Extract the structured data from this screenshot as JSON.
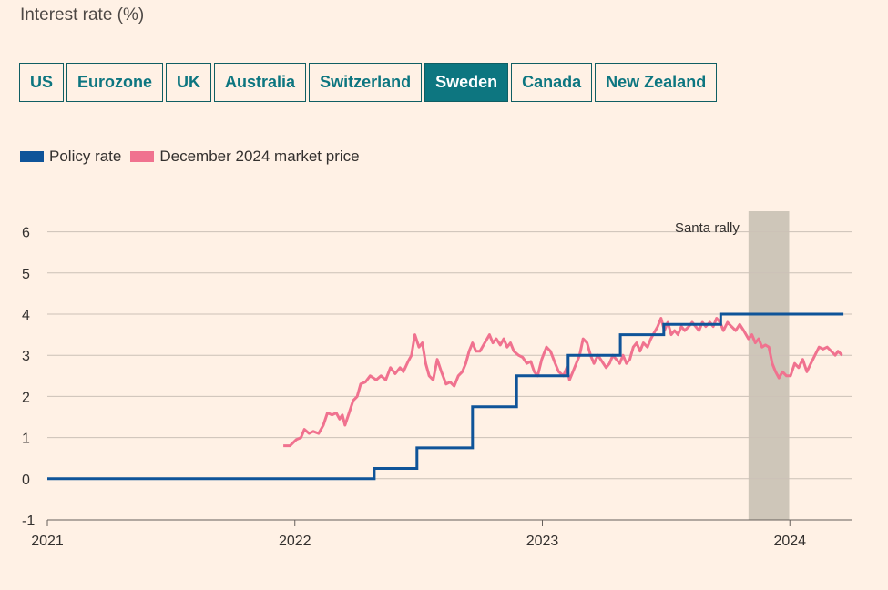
{
  "title": "Interest rate (%)",
  "tabs": [
    {
      "label": "US",
      "active": false
    },
    {
      "label": "Eurozone",
      "active": false
    },
    {
      "label": "UK",
      "active": false
    },
    {
      "label": "Australia",
      "active": false
    },
    {
      "label": "Switzerland",
      "active": false
    },
    {
      "label": "Sweden",
      "active": true
    },
    {
      "label": "Canada",
      "active": false
    },
    {
      "label": "New Zealand",
      "active": false
    }
  ],
  "colors": {
    "background": "#FFF1E5",
    "policy_rate": "#0F5499",
    "market_price": "#F0728F",
    "tab_accent": "#0D7680",
    "shade": "#CEC6B9",
    "grid": "#CCC1B7"
  },
  "chart_data": {
    "type": "line",
    "x_axis": {
      "type": "date",
      "range": [
        "2021-01-01",
        "2024-04-01"
      ],
      "ticks": [
        "2021",
        "2022",
        "2023",
        "2024"
      ]
    },
    "y_axis": {
      "range": [
        -1,
        6.5
      ],
      "ticks": [
        "-1",
        "0",
        "1",
        "2",
        "3",
        "4",
        "5",
        "6"
      ]
    },
    "grid": true,
    "legend_position": "top-left",
    "shaded_region": {
      "label": "Santa rally",
      "start": "2023-11-01",
      "end": "2023-12-31"
    },
    "series": [
      {
        "name": "Policy rate",
        "step": true,
        "points": [
          [
            "2021-01-01",
            0
          ],
          [
            "2022-04-28",
            0
          ],
          [
            "2022-04-28",
            0.25
          ],
          [
            "2022-06-30",
            0.25
          ],
          [
            "2022-06-30",
            0.75
          ],
          [
            "2022-09-20",
            0.75
          ],
          [
            "2022-09-20",
            1.75
          ],
          [
            "2022-11-24",
            1.75
          ],
          [
            "2022-11-24",
            2.5
          ],
          [
            "2023-02-08",
            2.5
          ],
          [
            "2023-02-08",
            3.0
          ],
          [
            "2023-04-26",
            3.0
          ],
          [
            "2023-04-26",
            3.5
          ],
          [
            "2023-06-29",
            3.5
          ],
          [
            "2023-06-29",
            3.75
          ],
          [
            "2023-09-21",
            3.75
          ],
          [
            "2023-09-21",
            4.0
          ],
          [
            "2024-03-20",
            4.0
          ]
        ]
      },
      {
        "name": "December 2024 market price",
        "step": false,
        "points": [
          [
            "2021-12-15",
            0.8
          ],
          [
            "2021-12-25",
            0.8
          ],
          [
            "2022-01-03",
            0.95
          ],
          [
            "2022-01-10",
            1.0
          ],
          [
            "2022-01-15",
            1.2
          ],
          [
            "2022-01-22",
            1.1
          ],
          [
            "2022-01-28",
            1.15
          ],
          [
            "2022-02-05",
            1.1
          ],
          [
            "2022-02-12",
            1.3
          ],
          [
            "2022-02-18",
            1.6
          ],
          [
            "2022-02-25",
            1.55
          ],
          [
            "2022-03-03",
            1.6
          ],
          [
            "2022-03-08",
            1.45
          ],
          [
            "2022-03-12",
            1.55
          ],
          [
            "2022-03-16",
            1.3
          ],
          [
            "2022-03-22",
            1.6
          ],
          [
            "2022-03-28",
            1.9
          ],
          [
            "2022-04-03",
            2.0
          ],
          [
            "2022-04-08",
            2.3
          ],
          [
            "2022-04-15",
            2.35
          ],
          [
            "2022-04-22",
            2.5
          ],
          [
            "2022-05-01",
            2.4
          ],
          [
            "2022-05-08",
            2.5
          ],
          [
            "2022-05-15",
            2.4
          ],
          [
            "2022-05-22",
            2.7
          ],
          [
            "2022-05-29",
            2.55
          ],
          [
            "2022-06-05",
            2.7
          ],
          [
            "2022-06-10",
            2.6
          ],
          [
            "2022-06-17",
            2.85
          ],
          [
            "2022-06-22",
            3.0
          ],
          [
            "2022-06-27",
            3.5
          ],
          [
            "2022-07-03",
            3.2
          ],
          [
            "2022-07-08",
            3.3
          ],
          [
            "2022-07-13",
            2.8
          ],
          [
            "2022-07-18",
            2.5
          ],
          [
            "2022-07-24",
            2.4
          ],
          [
            "2022-07-30",
            2.9
          ],
          [
            "2022-08-05",
            2.6
          ],
          [
            "2022-08-12",
            2.3
          ],
          [
            "2022-08-18",
            2.35
          ],
          [
            "2022-08-24",
            2.25
          ],
          [
            "2022-08-30",
            2.5
          ],
          [
            "2022-09-05",
            2.6
          ],
          [
            "2022-09-10",
            2.8
          ],
          [
            "2022-09-15",
            3.1
          ],
          [
            "2022-09-20",
            3.3
          ],
          [
            "2022-09-25",
            3.1
          ],
          [
            "2022-10-01",
            3.1
          ],
          [
            "2022-10-08",
            3.3
          ],
          [
            "2022-10-15",
            3.5
          ],
          [
            "2022-10-20",
            3.3
          ],
          [
            "2022-10-25",
            3.4
          ],
          [
            "2022-10-31",
            3.25
          ],
          [
            "2022-11-05",
            3.4
          ],
          [
            "2022-11-10",
            3.2
          ],
          [
            "2022-11-15",
            3.3
          ],
          [
            "2022-11-20",
            3.1
          ],
          [
            "2022-11-27",
            3.0
          ],
          [
            "2022-12-03",
            2.95
          ],
          [
            "2022-12-09",
            2.8
          ],
          [
            "2022-12-15",
            2.85
          ],
          [
            "2022-12-20",
            2.6
          ],
          [
            "2022-12-25",
            2.5
          ],
          [
            "2022-12-31",
            2.9
          ],
          [
            "2023-01-07",
            3.2
          ],
          [
            "2023-01-13",
            3.1
          ],
          [
            "2023-01-20",
            2.8
          ],
          [
            "2023-01-25",
            2.6
          ],
          [
            "2023-02-01",
            2.5
          ],
          [
            "2023-02-06",
            2.7
          ],
          [
            "2023-02-10",
            2.4
          ],
          [
            "2023-02-15",
            2.6
          ],
          [
            "2023-02-20",
            2.8
          ],
          [
            "2023-02-25",
            3.0
          ],
          [
            "2023-03-02",
            3.4
          ],
          [
            "2023-03-08",
            3.3
          ],
          [
            "2023-03-13",
            3.0
          ],
          [
            "2023-03-18",
            2.8
          ],
          [
            "2023-03-24",
            3.0
          ],
          [
            "2023-03-30",
            2.85
          ],
          [
            "2023-04-05",
            2.7
          ],
          [
            "2023-04-10",
            2.8
          ],
          [
            "2023-04-15",
            3.0
          ],
          [
            "2023-04-20",
            2.9
          ],
          [
            "2023-04-25",
            2.8
          ],
          [
            "2023-04-30",
            3.0
          ],
          [
            "2023-05-05",
            2.8
          ],
          [
            "2023-05-10",
            2.9
          ],
          [
            "2023-05-15",
            3.2
          ],
          [
            "2023-05-20",
            3.3
          ],
          [
            "2023-05-25",
            3.1
          ],
          [
            "2023-05-30",
            3.3
          ],
          [
            "2023-06-05",
            3.2
          ],
          [
            "2023-06-10",
            3.4
          ],
          [
            "2023-06-15",
            3.55
          ],
          [
            "2023-06-20",
            3.7
          ],
          [
            "2023-06-25",
            3.9
          ],
          [
            "2023-06-30",
            3.6
          ],
          [
            "2023-07-05",
            3.8
          ],
          [
            "2023-07-10",
            3.5
          ],
          [
            "2023-07-15",
            3.6
          ],
          [
            "2023-07-20",
            3.5
          ],
          [
            "2023-07-25",
            3.7
          ],
          [
            "2023-07-30",
            3.6
          ],
          [
            "2023-08-05",
            3.7
          ],
          [
            "2023-08-10",
            3.8
          ],
          [
            "2023-08-15",
            3.7
          ],
          [
            "2023-08-20",
            3.6
          ],
          [
            "2023-08-25",
            3.8
          ],
          [
            "2023-08-30",
            3.7
          ],
          [
            "2023-09-05",
            3.8
          ],
          [
            "2023-09-10",
            3.7
          ],
          [
            "2023-09-15",
            3.9
          ],
          [
            "2023-09-20",
            3.8
          ],
          [
            "2023-09-25",
            3.6
          ],
          [
            "2023-10-01",
            3.8
          ],
          [
            "2023-10-07",
            3.7
          ],
          [
            "2023-10-13",
            3.6
          ],
          [
            "2023-10-19",
            3.75
          ],
          [
            "2023-10-25",
            3.6
          ],
          [
            "2023-11-01",
            3.4
          ],
          [
            "2023-11-06",
            3.5
          ],
          [
            "2023-11-11",
            3.3
          ],
          [
            "2023-11-16",
            3.4
          ],
          [
            "2023-11-21",
            3.2
          ],
          [
            "2023-11-26",
            3.25
          ],
          [
            "2023-12-01",
            3.2
          ],
          [
            "2023-12-06",
            2.8
          ],
          [
            "2023-12-11",
            2.6
          ],
          [
            "2023-12-16",
            2.45
          ],
          [
            "2023-12-21",
            2.6
          ],
          [
            "2023-12-27",
            2.5
          ],
          [
            "2024-01-02",
            2.5
          ],
          [
            "2024-01-08",
            2.8
          ],
          [
            "2024-01-14",
            2.7
          ],
          [
            "2024-01-20",
            2.9
          ],
          [
            "2024-01-26",
            2.6
          ],
          [
            "2024-02-01",
            2.8
          ],
          [
            "2024-02-07",
            3.0
          ],
          [
            "2024-02-13",
            3.2
          ],
          [
            "2024-02-19",
            3.15
          ],
          [
            "2024-02-25",
            3.2
          ],
          [
            "2024-03-02",
            3.1
          ],
          [
            "2024-03-08",
            3.0
          ],
          [
            "2024-03-12",
            3.1
          ],
          [
            "2024-03-18",
            3.0
          ]
        ]
      }
    ]
  }
}
